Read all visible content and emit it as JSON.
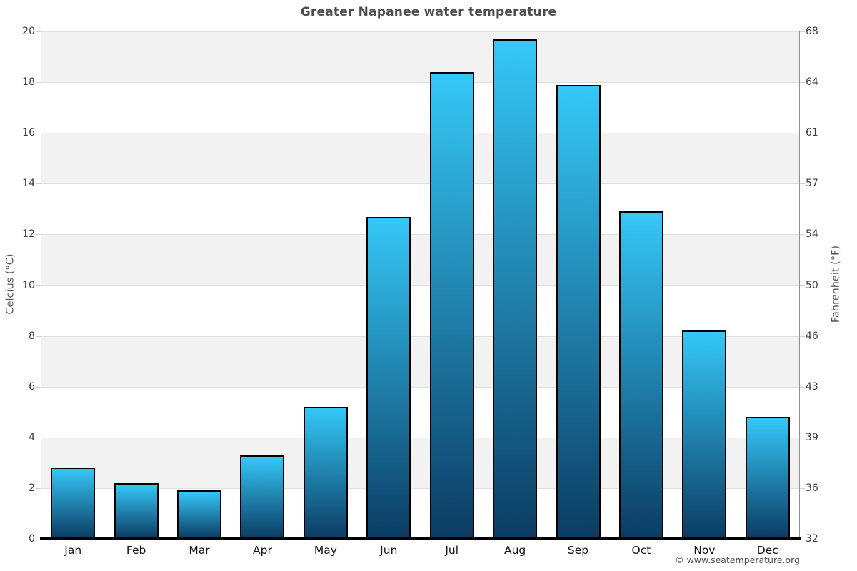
{
  "title": "Greater Napanee water temperature",
  "footer": {
    "credit": "© www.seatemperature.org"
  },
  "chart_data": {
    "type": "bar",
    "title": "Greater Napanee water temperature",
    "categories": [
      "Jan",
      "Feb",
      "Mar",
      "Apr",
      "May",
      "Jun",
      "Jul",
      "Aug",
      "Sep",
      "Oct",
      "Nov",
      "Dec"
    ],
    "values": [
      2.8,
      2.2,
      1.9,
      3.3,
      5.2,
      12.7,
      18.4,
      19.7,
      17.9,
      12.9,
      8.2,
      4.8
    ],
    "ylabel_left": "Celcius (°C)",
    "ylabel_right": "Fahrenheit (°F)",
    "ylim": [
      0,
      20
    ],
    "yticks_left": [
      0,
      2,
      4,
      6,
      8,
      10,
      12,
      14,
      16,
      18,
      20
    ],
    "yticks_right": [
      32,
      36,
      39,
      43,
      46,
      50,
      54,
      57,
      61,
      64,
      68
    ],
    "grid": "alternating horizontal bands every 2°C, gray on even pairs (18-20, 14-16, 10-12, 6-8, 2-4)",
    "legend": "none",
    "colors": {
      "band_gray": "#f2f2f2",
      "band_line": "#e0e0e0",
      "bar_gradient_top": "#35c8f7",
      "bar_gradient_bottom": "#0b3c63",
      "bar_border": "#000000",
      "side_axis": "#8f8f8f",
      "bottom_axis": "#000000",
      "tick_mark": "#cfcfcf",
      "title_text": "#4d4d4d",
      "tick_text": "#3d3d3d",
      "month_text": "#111111",
      "axis_title_text": "#555555",
      "footer_text": "#4a4a4a"
    }
  }
}
